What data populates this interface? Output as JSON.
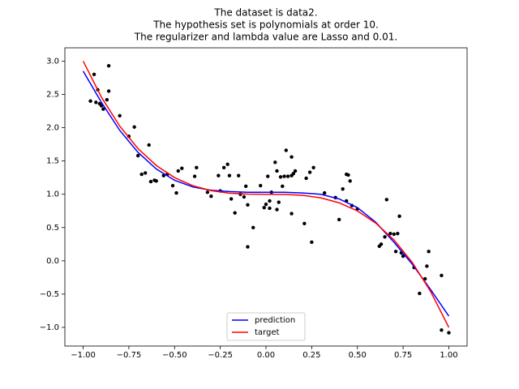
{
  "chart_data": {
    "type": "scatter",
    "title": [
      "The dataset is data2.",
      "The hypothesis set is polynomials at order 10.",
      "The regularizer and lambda value are Lasso and 0.01."
    ],
    "xlim": [
      -1.1,
      1.1
    ],
    "ylim": [
      -1.28,
      3.2
    ],
    "xticks": [
      {
        "value": -1,
        "label": "−1.00"
      },
      {
        "value": -0.75,
        "label": "−0.75"
      },
      {
        "value": -0.5,
        "label": "−0.50"
      },
      {
        "value": -0.25,
        "label": "−0.25"
      },
      {
        "value": 0,
        "label": "0.00"
      },
      {
        "value": 0.25,
        "label": "0.25"
      },
      {
        "value": 0.5,
        "label": "0.50"
      },
      {
        "value": 0.75,
        "label": "0.75"
      },
      {
        "value": 1,
        "label": "1.00"
      }
    ],
    "yticks": [
      {
        "value": -1,
        "label": "−1.0"
      },
      {
        "value": -0.5,
        "label": "−0.5"
      },
      {
        "value": 0,
        "label": "0.0"
      },
      {
        "value": 0.5,
        "label": "0.5"
      },
      {
        "value": 1,
        "label": "1.0"
      },
      {
        "value": 1.5,
        "label": "1.5"
      },
      {
        "value": 2,
        "label": "2.0"
      },
      {
        "value": 2.5,
        "label": "2.5"
      },
      {
        "value": 3,
        "label": "3.0"
      }
    ],
    "legend": "lower center",
    "points": {
      "color": "#000000",
      "x": [
        -0.96,
        -0.94,
        -0.93,
        -0.92,
        -0.91,
        -0.9,
        -0.89,
        -0.87,
        -0.86,
        -0.86,
        -0.8,
        -0.75,
        -0.72,
        -0.7,
        -0.68,
        -0.66,
        -0.64,
        -0.63,
        -0.61,
        -0.6,
        -0.56,
        -0.54,
        -0.51,
        -0.49,
        -0.48,
        -0.46,
        -0.39,
        -0.38,
        -0.32,
        -0.3,
        -0.26,
        -0.25,
        -0.23,
        -0.21,
        -0.2,
        -0.19,
        -0.17,
        -0.15,
        -0.14,
        -0.12,
        -0.11,
        -0.1,
        -0.1,
        -0.07,
        -0.03,
        -0.01,
        0,
        0.01,
        0.02,
        0.02,
        0.03,
        0.05,
        0.06,
        0.06,
        0.07,
        0.08,
        0.09,
        0.1,
        0.11,
        0.12,
        0.14,
        0.14,
        0.14,
        0.15,
        0.16,
        0.21,
        0.22,
        0.24,
        0.25,
        0.26,
        0.32,
        0.38,
        0.4,
        0.42,
        0.44,
        0.44,
        0.45,
        0.46,
        0.47,
        0.5,
        0.62,
        0.63,
        0.65,
        0.66,
        0.68,
        0.7,
        0.71,
        0.72,
        0.73,
        0.74,
        0.75,
        0.81,
        0.84,
        0.87,
        0.88,
        0.89,
        0.96,
        0.96,
        1.0
      ],
      "y": [
        2.4,
        2.8,
        2.38,
        2.57,
        2.36,
        2.33,
        2.28,
        2.42,
        2.93,
        2.55,
        2.18,
        1.87,
        2.01,
        1.58,
        1.3,
        1.32,
        1.74,
        1.19,
        1.21,
        1.2,
        1.28,
        1.3,
        1.13,
        1.02,
        1.35,
        1.39,
        1.27,
        1.4,
        1.03,
        0.97,
        1.28,
        1.05,
        1.4,
        1.45,
        1.28,
        0.93,
        0.72,
        1.28,
        1.0,
        0.96,
        1.12,
        0.84,
        0.21,
        0.5,
        1.13,
        0.8,
        0.85,
        1.27,
        0.79,
        0.9,
        1.03,
        1.48,
        1.35,
        0.77,
        0.88,
        1.26,
        1.12,
        1.27,
        1.66,
        1.27,
        0.71,
        1.56,
        1.28,
        1.31,
        1.35,
        0.56,
        1.24,
        1.33,
        0.28,
        1.4,
        1.02,
        0.95,
        0.62,
        1.08,
        0.9,
        1.3,
        1.29,
        1.2,
        0.83,
        0.78,
        0.22,
        0.25,
        0.36,
        0.92,
        0.41,
        0.4,
        0.14,
        0.41,
        0.67,
        0.12,
        0.07,
        -0.1,
        -0.49,
        -0.27,
        -0.08,
        0.14,
        -1.04,
        -0.22,
        -1.08
      ]
    },
    "x": [
      -1,
      -0.9,
      -0.8,
      -0.7,
      -0.6,
      -0.5,
      -0.4,
      -0.3,
      -0.2,
      -0.1,
      0,
      0.1,
      0.2,
      0.3,
      0.4,
      0.5,
      0.6,
      0.7,
      0.8,
      0.9,
      1
    ],
    "series": [
      {
        "name": "prediction",
        "color": "#0000ff",
        "values": [
          2.85,
          2.38,
          1.96,
          1.63,
          1.38,
          1.21,
          1.11,
          1.06,
          1.04,
          1.03,
          1.03,
          1.03,
          1.02,
          1.0,
          0.93,
          0.8,
          0.58,
          0.28,
          -0.05,
          -0.43,
          -0.83
        ]
      },
      {
        "name": "target",
        "color": "#ff0000",
        "values": [
          3.0,
          2.458,
          2.024,
          1.686,
          1.432,
          1.25,
          1.128,
          1.054,
          1.016,
          1.002,
          1,
          0.998,
          0.984,
          0.946,
          0.872,
          0.75,
          0.568,
          0.314,
          -0.024,
          -0.458,
          -1.0
        ]
      }
    ]
  }
}
